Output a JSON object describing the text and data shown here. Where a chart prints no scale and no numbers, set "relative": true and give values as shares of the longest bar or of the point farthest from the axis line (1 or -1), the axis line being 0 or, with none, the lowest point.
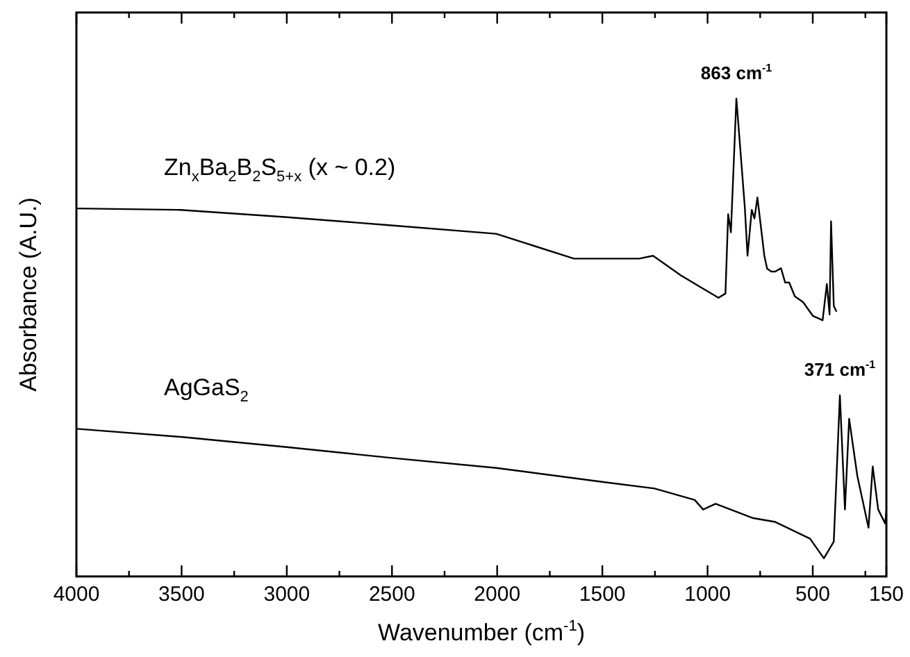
{
  "chart_data": {
    "type": "line",
    "relative": true,
    "xlabel": "Wavenumber (cm$^{-1}$)",
    "ylabel": "Absorbance (A.U.)",
    "xlim": [
      4000,
      150
    ],
    "xticks": [
      4000,
      {
        "value": 3750,
        "label": null
      },
      3500,
      {
        "value": 3250,
        "label": null
      },
      3000,
      {
        "value": 2750,
        "label": null
      },
      2500,
      {
        "value": 2250,
        "label": null
      },
      2000,
      {
        "value": 1750,
        "label": null
      },
      1500,
      {
        "value": 1250,
        "label": null
      },
      1000,
      {
        "value": 750,
        "label": null
      },
      500,
      {
        "value": 250,
        "label": null
      },
      150
    ],
    "tick_labels": "x",
    "grid": false,
    "legend": false,
    "marker": "none",
    "line_style": "solid",
    "series": [
      {
        "name": "Zn$_{x}$Ba$_{2}$B$_{2}$S$_{5+x}$ (x ~ 0.2)",
        "color": "#000000",
        "x": [
          4000,
          3505,
          3009,
          2514,
          2005,
          1635,
          1500,
          1325,
          1259,
          1127,
          948,
          915,
          902,
          889,
          863,
          823,
          810,
          790,
          777,
          763,
          730,
          717,
          697,
          678,
          651,
          631,
          612,
          585,
          546,
          499,
          453,
          433,
          420,
          413,
          400,
          387
        ],
        "values": [
          0.77,
          0.767,
          0.752,
          0.735,
          0.717,
          0.665,
          0.665,
          0.665,
          0.671,
          0.63,
          0.583,
          0.592,
          0.758,
          0.72,
          1,
          0.773,
          0.671,
          0.767,
          0.749,
          0.793,
          0.671,
          0.644,
          0.638,
          0.638,
          0.645,
          0.615,
          0.615,
          0.586,
          0.574,
          0.545,
          0.536,
          0.612,
          0.548,
          0.743,
          0.566,
          0.554
        ]
      },
      {
        "name": "AgGaS$_{2}$",
        "color": "#000000",
        "x": [
          4000,
          3505,
          3009,
          2501,
          2005,
          1503,
          1252,
          1061,
          1021,
          962,
          783,
          678,
          513,
          447,
          400,
          371,
          347,
          327,
          288,
          235,
          215,
          189,
          156,
          150
        ],
        "values": [
          0.309,
          0.292,
          0.271,
          0.248,
          0.227,
          0.198,
          0.184,
          0.16,
          0.14,
          0.152,
          0.122,
          0.114,
          0.079,
          0.038,
          0.073,
          0.379,
          0.14,
          0.33,
          0.21,
          0.102,
          0.23,
          0.14,
          0.111,
          0.137
        ]
      }
    ],
    "annotations": [
      {
        "text": "863 cm$^{-1}$",
        "x": 863,
        "y": 1
      },
      {
        "text": "371 cm$^{-1}$",
        "x": 371,
        "y": 0.379
      }
    ]
  }
}
